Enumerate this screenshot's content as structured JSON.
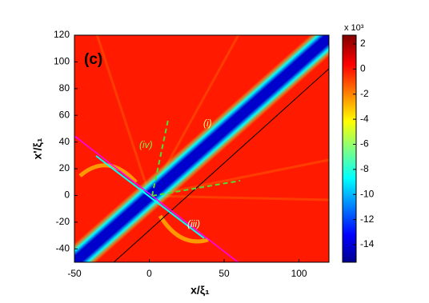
{
  "chart_data": {
    "type": "heatmap",
    "xlabel": "x/ξ₁",
    "ylabel": "x'/ξ₁",
    "xlim": [
      -50,
      120
    ],
    "ylim": [
      -50,
      120
    ],
    "xticks": [
      -50,
      0,
      50,
      100
    ],
    "yticks": [
      -40,
      -20,
      0,
      20,
      40,
      60,
      80,
      100,
      120
    ],
    "annotations": [
      "(c)",
      "(i)",
      "(iv)",
      "(iii)"
    ],
    "colorbar": {
      "label": "x 10³",
      "lim": [
        -15.4,
        2.7
      ],
      "ticks": [
        2,
        0,
        -2,
        -4,
        -6,
        -8,
        -10,
        -12,
        -14
      ]
    }
  }
}
